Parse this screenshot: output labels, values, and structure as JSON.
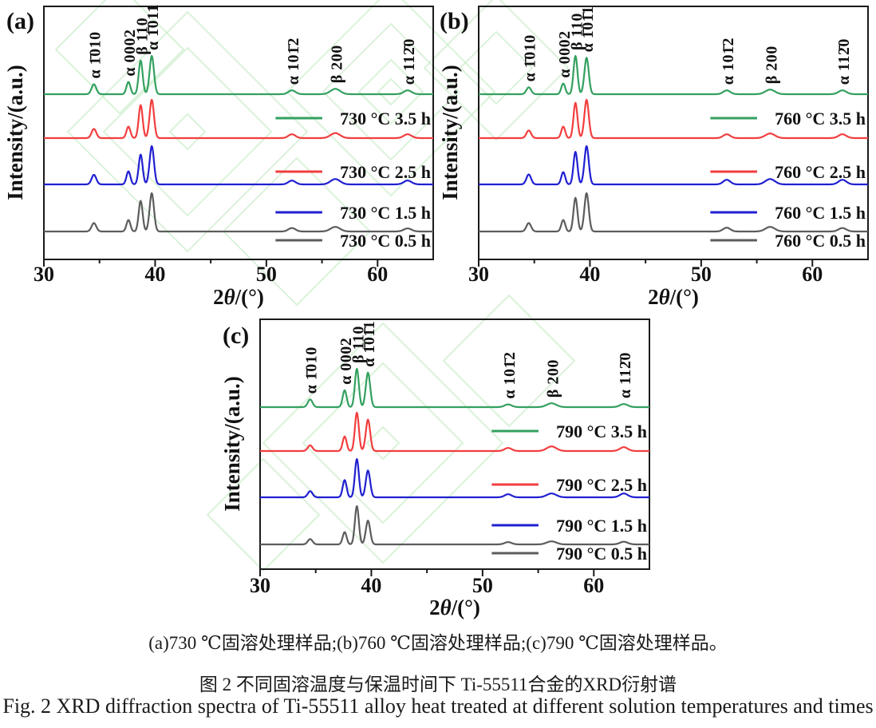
{
  "figure_title": "XRD spectra figure",
  "captions": {
    "cn_subcaptions": "(a)730 ℃固溶处理样品;(b)760 ℃固溶处理样品;(c)790 ℃固溶处理样品。",
    "cn_title": "图 2  不同固溶温度与保温时间下 Ti-55511合金的XRD衍射谱",
    "en_title": "Fig. 2  XRD diffraction spectra of Ti-55511 alloy heat treated at different solution temperatures and times"
  },
  "colors": {
    "curve_green": "#33a05f",
    "curve_red": "#f23e3e",
    "curve_blue": "#2020d2",
    "curve_gray": "#5c5c5c",
    "frame": "#1a1a1a",
    "watermark_green": "#c6ebc6"
  },
  "chart_data": [
    {
      "type": "line",
      "panel_label": "(a)",
      "xlabel": "2θ/(°)",
      "ylabel": "Intensity/(a.u.)",
      "x_range": [
        30,
        65
      ],
      "x_ticks": [
        30,
        40,
        50,
        60
      ],
      "x_minor_ticks": [
        35,
        45,
        55
      ],
      "grid": false,
      "legend_position": "right-stacked",
      "peaks": [
        {
          "label": "α 1̄010",
          "two_theta": 34.5
        },
        {
          "label": "α 0002",
          "two_theta": 37.6
        },
        {
          "label": "β 110",
          "two_theta": 38.7
        },
        {
          "label": "α 1̄011",
          "two_theta": 39.7
        },
        {
          "label": "α 101̄2",
          "two_theta": 52.3
        },
        {
          "label": "β 200",
          "two_theta": 56.2
        },
        {
          "label": "α 112̄0",
          "two_theta": 62.7
        }
      ],
      "series": [
        {
          "name": "730 °C 0.5 h",
          "color": "#5c5c5c",
          "rel_heights": [
            0.22,
            0.3,
            0.8,
            1.0,
            0.09,
            0.12,
            0.08
          ]
        },
        {
          "name": "730 °C 1.5 h",
          "color": "#2020d2",
          "rel_heights": [
            0.25,
            0.34,
            0.78,
            1.0,
            0.1,
            0.14,
            0.1
          ]
        },
        {
          "name": "730 °C 2.5 h",
          "color": "#f23e3e",
          "rel_heights": [
            0.24,
            0.3,
            0.86,
            1.0,
            0.1,
            0.13,
            0.1
          ]
        },
        {
          "name": "730 °C 3.5 h",
          "color": "#33a05f",
          "rel_heights": [
            0.26,
            0.32,
            0.88,
            1.0,
            0.1,
            0.14,
            0.1
          ]
        }
      ]
    },
    {
      "type": "line",
      "panel_label": "(b)",
      "xlabel": "2θ/(°)",
      "ylabel": "Intensity/(a.u.)",
      "x_range": [
        30,
        65
      ],
      "x_ticks": [
        30,
        40,
        50,
        60
      ],
      "x_minor_ticks": [
        35,
        45,
        55
      ],
      "grid": false,
      "legend_position": "right-stacked",
      "peaks": [
        {
          "label": "α 1̄010",
          "two_theta": 34.5
        },
        {
          "label": "α 0002",
          "two_theta": 37.6
        },
        {
          "label": "β 110",
          "two_theta": 38.7
        },
        {
          "label": "α 1̄01̄1",
          "two_theta": 39.7
        },
        {
          "label": "α 101̄2",
          "two_theta": 52.3
        },
        {
          "label": "β 200",
          "two_theta": 56.2
        },
        {
          "label": "α 112̄0",
          "two_theta": 62.7
        }
      ],
      "series": [
        {
          "name": "760 °C 0.5 h",
          "color": "#5c5c5c",
          "rel_heights": [
            0.22,
            0.3,
            0.88,
            1.0,
            0.1,
            0.12,
            0.09
          ]
        },
        {
          "name": "760 °C 1.5 h",
          "color": "#2020d2",
          "rel_heights": [
            0.26,
            0.32,
            0.85,
            1.0,
            0.12,
            0.14,
            0.12
          ]
        },
        {
          "name": "760 °C 2.5 h",
          "color": "#f23e3e",
          "rel_heights": [
            0.2,
            0.3,
            0.92,
            1.0,
            0.1,
            0.12,
            0.1
          ]
        },
        {
          "name": "760 °C 3.5 h",
          "color": "#33a05f",
          "rel_heights": [
            0.18,
            0.28,
            1.0,
            0.95,
            0.1,
            0.12,
            0.1
          ]
        }
      ]
    },
    {
      "type": "line",
      "panel_label": "(c)",
      "xlabel": "2θ/(°)",
      "ylabel": "Intensity/(a.u.)",
      "x_range": [
        30,
        65
      ],
      "x_ticks": [
        30,
        40,
        50,
        60
      ],
      "x_minor_ticks": [
        35,
        45,
        55
      ],
      "grid": false,
      "legend_position": "right-stacked",
      "peaks": [
        {
          "label": "α 1̄010",
          "two_theta": 34.5
        },
        {
          "label": "α 0002",
          "two_theta": 37.6
        },
        {
          "label": "β 110",
          "two_theta": 38.7
        },
        {
          "label": "α 1̄01̄1",
          "two_theta": 39.7
        },
        {
          "label": "α 101̄2",
          "two_theta": 52.3
        },
        {
          "label": "β 200",
          "two_theta": 56.2
        },
        {
          "label": "α 112̄0",
          "two_theta": 62.7
        }
      ],
      "series": [
        {
          "name": "790 °C 0.5 h",
          "color": "#5c5c5c",
          "rel_heights": [
            0.14,
            0.32,
            1.0,
            0.62,
            0.06,
            0.08,
            0.07
          ]
        },
        {
          "name": "790 °C 1.5 h",
          "color": "#2020d2",
          "rel_heights": [
            0.16,
            0.45,
            1.0,
            0.7,
            0.08,
            0.1,
            0.1
          ]
        },
        {
          "name": "790 °C 2.5 h",
          "color": "#f23e3e",
          "rel_heights": [
            0.15,
            0.38,
            1.0,
            0.82,
            0.08,
            0.12,
            0.1
          ]
        },
        {
          "name": "790 °C 3.5 h",
          "color": "#33a05f",
          "rel_heights": [
            0.2,
            0.44,
            1.0,
            0.9,
            0.07,
            0.1,
            0.08
          ]
        }
      ]
    }
  ]
}
